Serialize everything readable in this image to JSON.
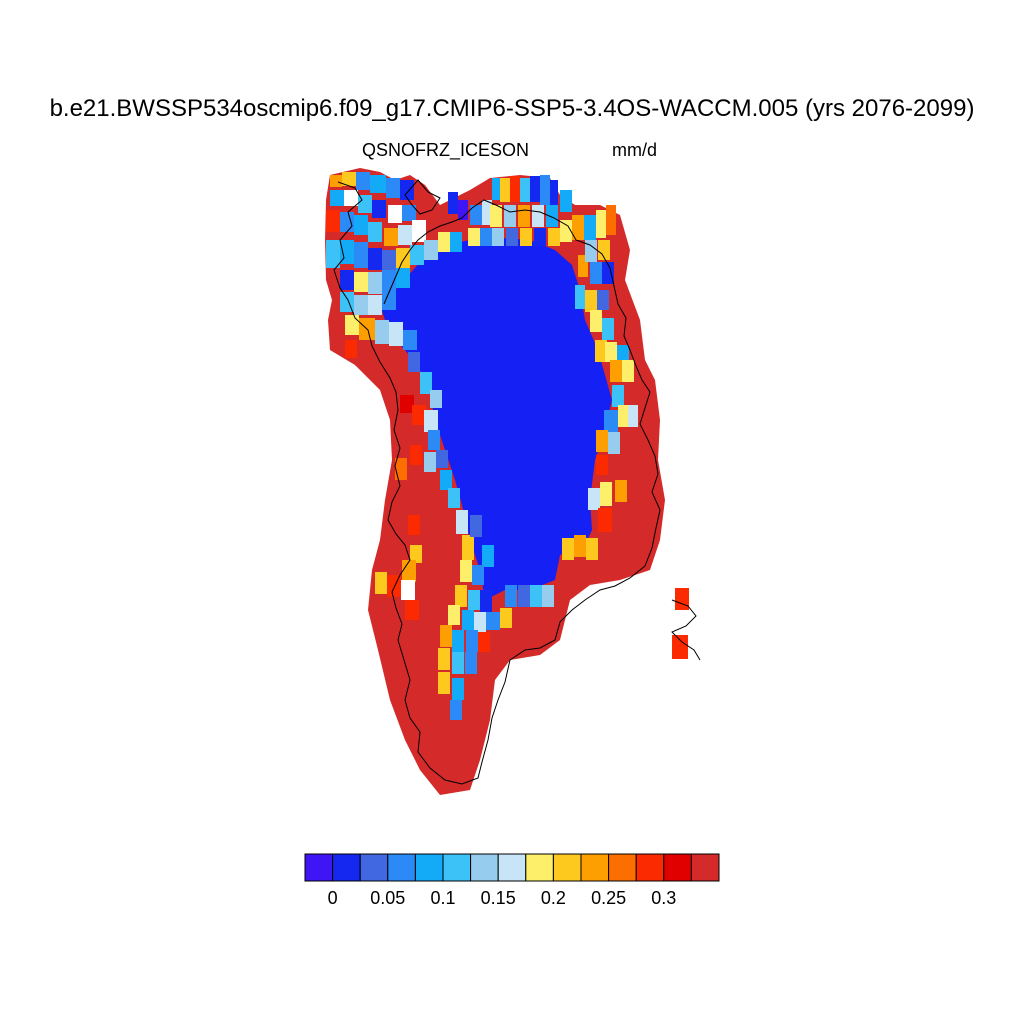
{
  "title": "b.e21.BWSSP534oscmip6.f09_g17.CMIP6-SSP5-3.4OS-WACCM.005 (yrs 2076-2099)",
  "variable": "QSNOFRZ_ICE",
  "season": "SON",
  "units": "mm/d",
  "colorbar": {
    "colors": [
      "#3f14f5",
      "#1428ef",
      "#4168e1",
      "#2b8af6",
      "#13aaf8",
      "#3cc2f7",
      "#96cdee",
      "#c8e5f7",
      "#fdef6a",
      "#fdc91f",
      "#fd9f00",
      "#fd6e00",
      "#fb2a00",
      "#e00000",
      "#d42a2a"
    ],
    "tick_labels": [
      "0",
      "0.05",
      "0.1",
      "0.15",
      "0.2",
      "0.25",
      "0.3"
    ]
  },
  "map_layers": {
    "interior_color": "#1520f5",
    "coast_color": "#d42a2a",
    "missing_color": "#ffffff"
  }
}
